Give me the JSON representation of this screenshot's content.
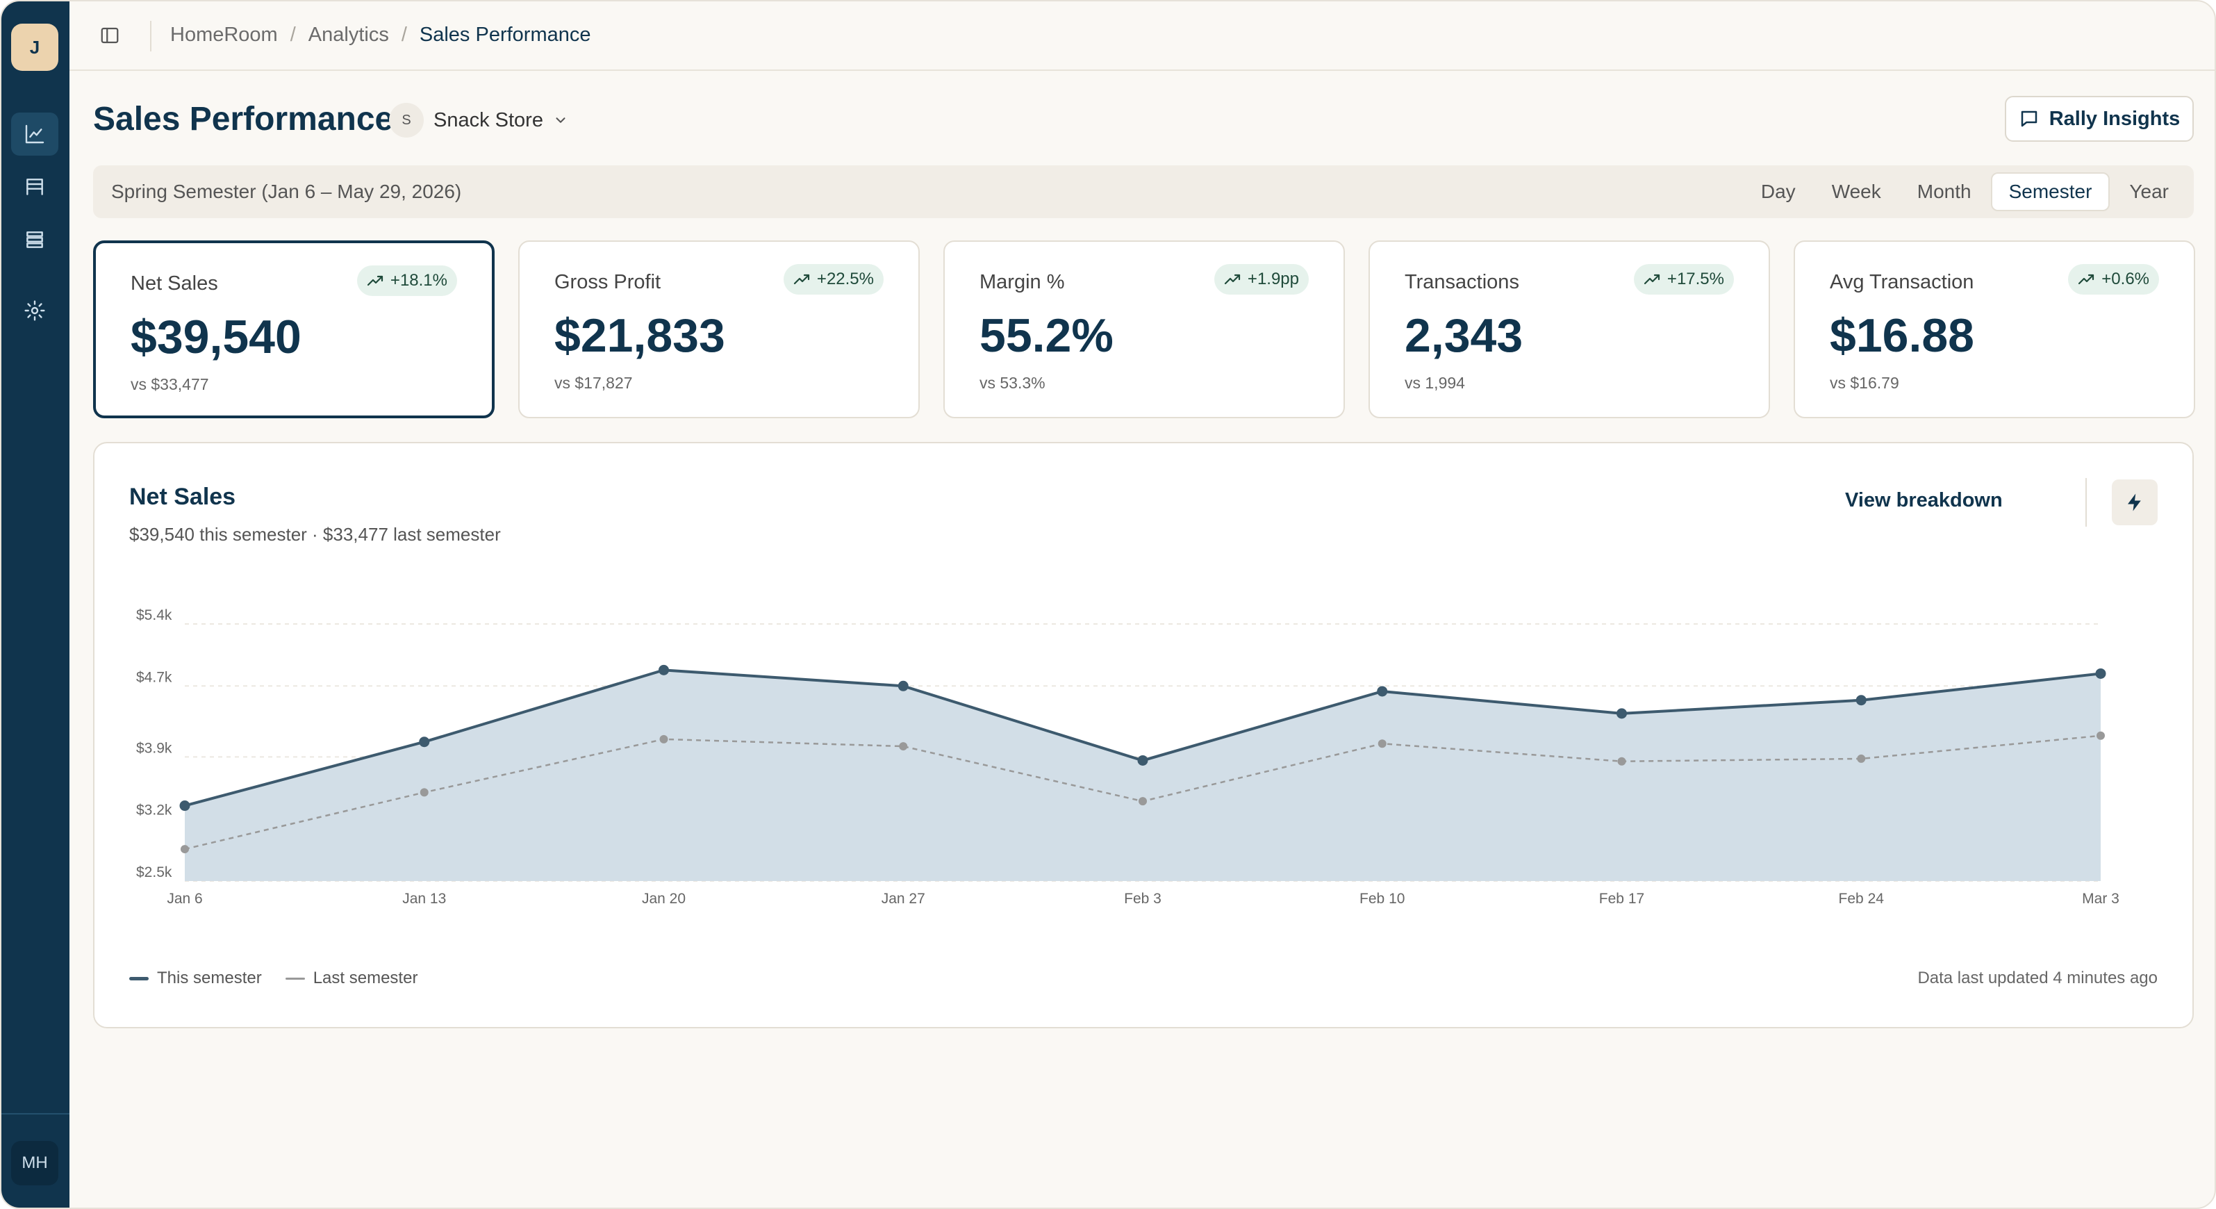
{
  "sidebar": {
    "logo_letter": "J",
    "items": [
      {
        "name": "analytics-nav",
        "icon": "line-chart-icon",
        "active": true
      },
      {
        "name": "store-nav",
        "icon": "storefront-icon",
        "active": false
      },
      {
        "name": "inventory-nav",
        "icon": "list-icon",
        "active": false
      },
      {
        "name": "settings-nav",
        "icon": "gear-icon",
        "active": false
      }
    ],
    "user_initials": "MH"
  },
  "breadcrumb": [
    "HomeRoom",
    "Analytics",
    "Sales Performance"
  ],
  "header": {
    "title": "Sales Performance",
    "store_initial": "S",
    "store_name": "Snack Store",
    "insights_label": "Rally Insights"
  },
  "period": {
    "label": "Spring Semester (Jan 6 – May 29, 2026)",
    "tabs": [
      "Day",
      "Week",
      "Month",
      "Semester",
      "Year"
    ],
    "active": "Semester"
  },
  "kpis": [
    {
      "label": "Net Sales",
      "change": "+18.1%",
      "value": "$39,540",
      "compare": "vs $33,477"
    },
    {
      "label": "Gross Profit",
      "change": "+22.5%",
      "value": "$21,833",
      "compare": "vs $17,827"
    },
    {
      "label": "Margin %",
      "change": "+1.9pp",
      "value": "55.2%",
      "compare": "vs 53.3%"
    },
    {
      "label": "Transactions",
      "change": "+17.5%",
      "value": "2,343",
      "compare": "vs 1,994"
    },
    {
      "label": "Avg Transaction",
      "change": "+0.6%",
      "value": "$16.88",
      "compare": "vs $16.79"
    }
  ],
  "chart_panel": {
    "title": "Net Sales",
    "subtitle": "$39,540 this semester · $33,477 last semester",
    "breakdown_label": "View breakdown",
    "updated": "Data last updated 4 minutes ago"
  },
  "chart_data": {
    "type": "area",
    "categories": [
      "Jan 6",
      "Jan 13",
      "Jan 20",
      "Jan 27",
      "Feb 3",
      "Feb 10",
      "Feb 17",
      "Feb 24",
      "Mar 3"
    ],
    "series": [
      {
        "name": "This semester",
        "values": [
          3.35,
          4.07,
          4.88,
          4.7,
          3.86,
          4.64,
          4.39,
          4.54,
          4.84
        ],
        "color": "#3d5a6e"
      },
      {
        "name": "Last semester",
        "values": [
          2.86,
          3.5,
          4.1,
          4.02,
          3.4,
          4.05,
          3.85,
          3.88,
          4.14
        ],
        "color": "#999999"
      }
    ],
    "ylabel": "",
    "yticks": [
      2.5,
      3.2,
      3.9,
      4.7,
      5.4
    ],
    "ytick_labels": [
      "$2.5k",
      "$3.2k",
      "$3.9k",
      "$4.7k",
      "$5.4k"
    ],
    "ylim": [
      2.5,
      5.4
    ],
    "area_fill": "#d2dee7",
    "grid": true,
    "legend": "bottom-left"
  }
}
